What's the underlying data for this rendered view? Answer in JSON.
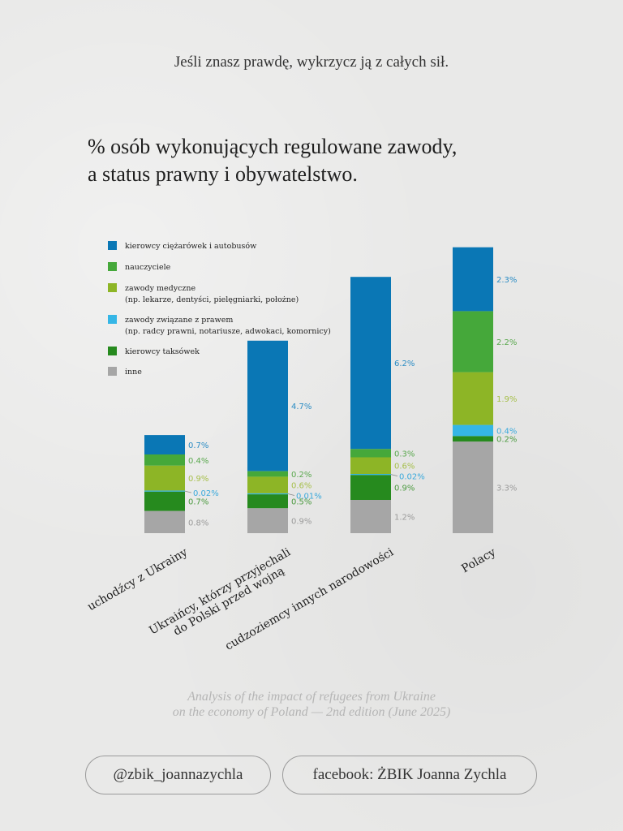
{
  "header": {
    "motto": "Jeśli znasz prawdę, wykrzycz ją z całych sił."
  },
  "chart_data": {
    "type": "bar",
    "stacked": true,
    "title_lines": [
      "% osób wykonujących regulowane zawody,",
      "a status prawny i obywatelstwo."
    ],
    "xlabel": "",
    "ylabel": "",
    "unit": "%",
    "legend_position": "top-left",
    "categories": [
      [
        "uchodźcy z Ukrainy"
      ],
      [
        "Ukraińcy, którzy przyjechali",
        "do Polski przed wojną"
      ],
      [
        "cudzoziemcy innych narodowości"
      ],
      [
        "Polacy"
      ]
    ],
    "series": [
      {
        "name": "kierowcy ciężarówek i autobusów",
        "note": "",
        "color": "#0a77b5",
        "label_color": "#2b8cc4",
        "values": [
          0.7,
          4.7,
          6.2,
          2.3
        ],
        "labels": [
          "0.7%",
          "4.7%",
          "6.2%",
          "2.3%"
        ]
      },
      {
        "name": "nauczyciele",
        "note": "",
        "color": "#45a83a",
        "label_color": "#5aa84e",
        "values": [
          0.4,
          0.2,
          0.3,
          2.2
        ],
        "labels": [
          "0.4%",
          "0.2%",
          "0.3%",
          "2.2%"
        ]
      },
      {
        "name": "zawody medyczne",
        "note": "(np. lekarze, dentyści, pielęgniarki, położne)",
        "color": "#8db526",
        "label_color": "#a6bf4a",
        "values": [
          0.9,
          0.6,
          0.6,
          1.9
        ],
        "labels": [
          "0.9%",
          "0.6%",
          "0.6%",
          "1.9%"
        ]
      },
      {
        "name": "zawody związane z prawem",
        "note": "(np. radcy prawni, notariusze, adwokaci, komornicy)",
        "color": "#35b6e6",
        "label_color": "#3aa9dc",
        "values": [
          0.02,
          0.01,
          0.02,
          0.4
        ],
        "labels": [
          "0.02%",
          "0.01%",
          "0.02%",
          "0.4%"
        ]
      },
      {
        "name": "kierowcy taksówek",
        "note": "",
        "color": "#268a1e",
        "label_color": "#4c9a40",
        "values": [
          0.7,
          0.5,
          0.9,
          0.2
        ],
        "labels": [
          "0.7%",
          "0.5%",
          "0.9%",
          "0.2%"
        ]
      },
      {
        "name": "inne",
        "note": "",
        "color": "#a6a6a6",
        "label_color": "#9a9a9a",
        "values": [
          0.8,
          0.9,
          1.2,
          3.3
        ],
        "labels": [
          "0.8%",
          "0.9%",
          "1.2%",
          "3.3%"
        ]
      }
    ]
  },
  "footer": {
    "source_lines": [
      "Analysis of the impact of refugees from Ukraine",
      "on the economy of Poland — 2nd edition (June 2025)"
    ],
    "instagram": "@zbik_joannazychla",
    "facebook": "facebook: ŻBIK Joanna Zychla"
  }
}
